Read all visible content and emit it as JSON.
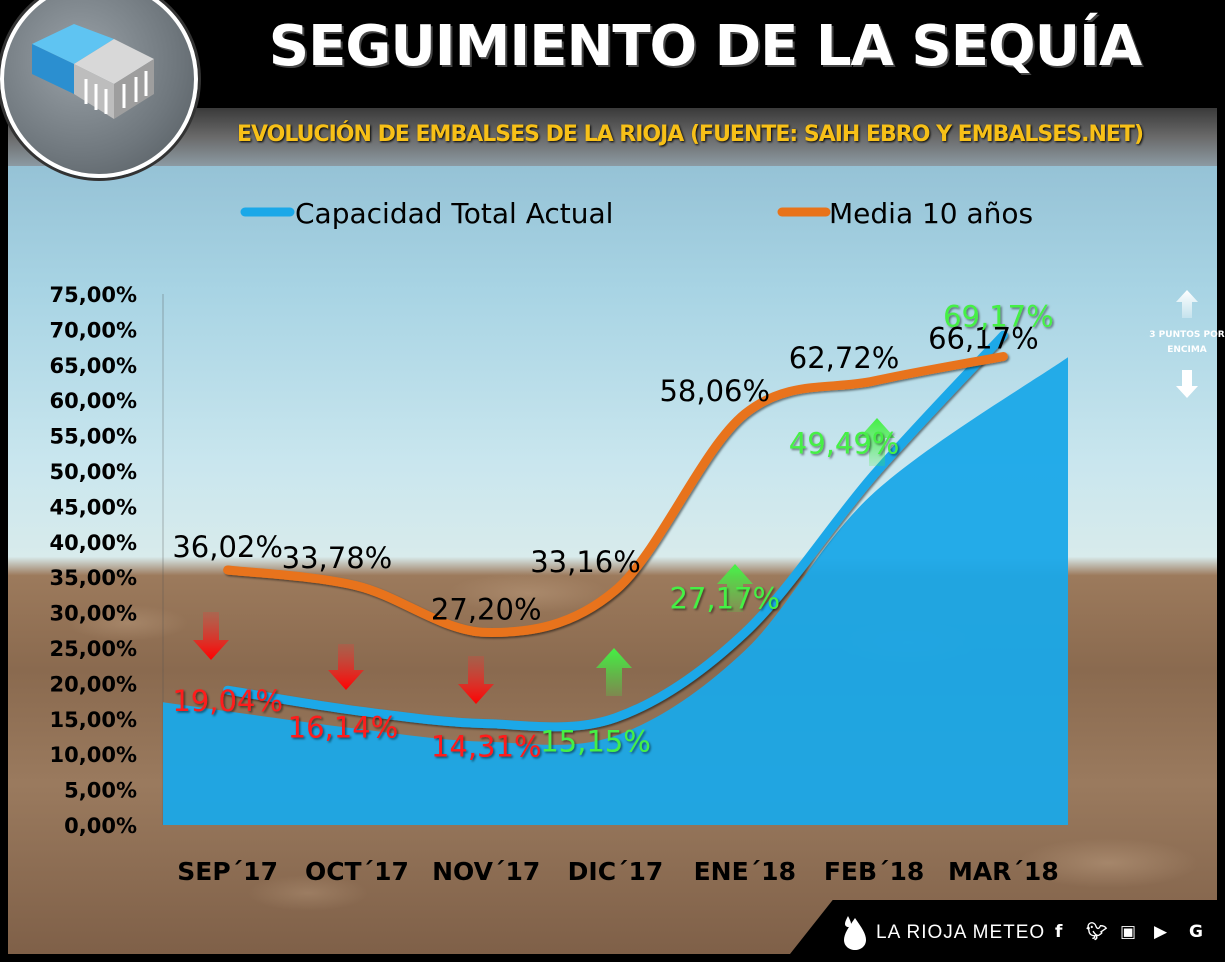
{
  "header": {
    "title": "SEGUIMIENTO DE LA SEQUÍA",
    "subtitle": "EVOLUCIÓN DE EMBALSES DE LA RIOJA (FUENTE: SAIH EBRO Y EMBALSES.NET)"
  },
  "legend": {
    "current_label": "Capacidad Total Actual",
    "average_label": "Media 10 años"
  },
  "annotation": {
    "text_line1": "3 PUNTOS POR",
    "text_line2": "ENCIMA"
  },
  "footer": {
    "brand": "LA RIOJA METEO",
    "social_icons": [
      "facebook-icon",
      "twitter-icon",
      "instagram-icon",
      "youtube-icon",
      "google-icon"
    ]
  },
  "colors": {
    "current": "#1aa8e8",
    "average": "#e8731a",
    "below": "#ff1a1a",
    "above": "#44f044"
  },
  "chart_data": {
    "type": "line",
    "categories": [
      "SEP´17",
      "OCT´17",
      "NOV´17",
      "DIC´17",
      "ENE´18",
      "FEB´18",
      "MAR´18"
    ],
    "series": [
      {
        "name": "Capacidad Total Actual",
        "values": [
          19.04,
          16.14,
          14.31,
          15.15,
          27.17,
          49.49,
          69.17
        ],
        "labels": [
          "19,04%",
          "16,14%",
          "14,31%",
          "15,15%",
          "27,17%",
          "49,49%",
          "69,17%"
        ],
        "trend": [
          "down",
          "down",
          "down",
          "up",
          "up",
          "up",
          "up"
        ]
      },
      {
        "name": "Media 10 años",
        "values": [
          36.02,
          33.78,
          27.2,
          33.16,
          58.06,
          62.72,
          66.17
        ],
        "labels": [
          "36,02%",
          "33,78%",
          "27,20%",
          "33,16%",
          "58,06%",
          "62,72%",
          "66,17%"
        ]
      }
    ],
    "yticks": [
      "75,00%",
      "70,00%",
      "65,00%",
      "60,00%",
      "55,00%",
      "50,00%",
      "45,00%",
      "40,00%",
      "35,00%",
      "30,00%",
      "25,00%",
      "20,00%",
      "15,00%",
      "10,00%",
      "5,00%",
      "0,00%"
    ],
    "ylim": [
      0,
      75
    ],
    "grid": false,
    "legend_position": "top"
  }
}
